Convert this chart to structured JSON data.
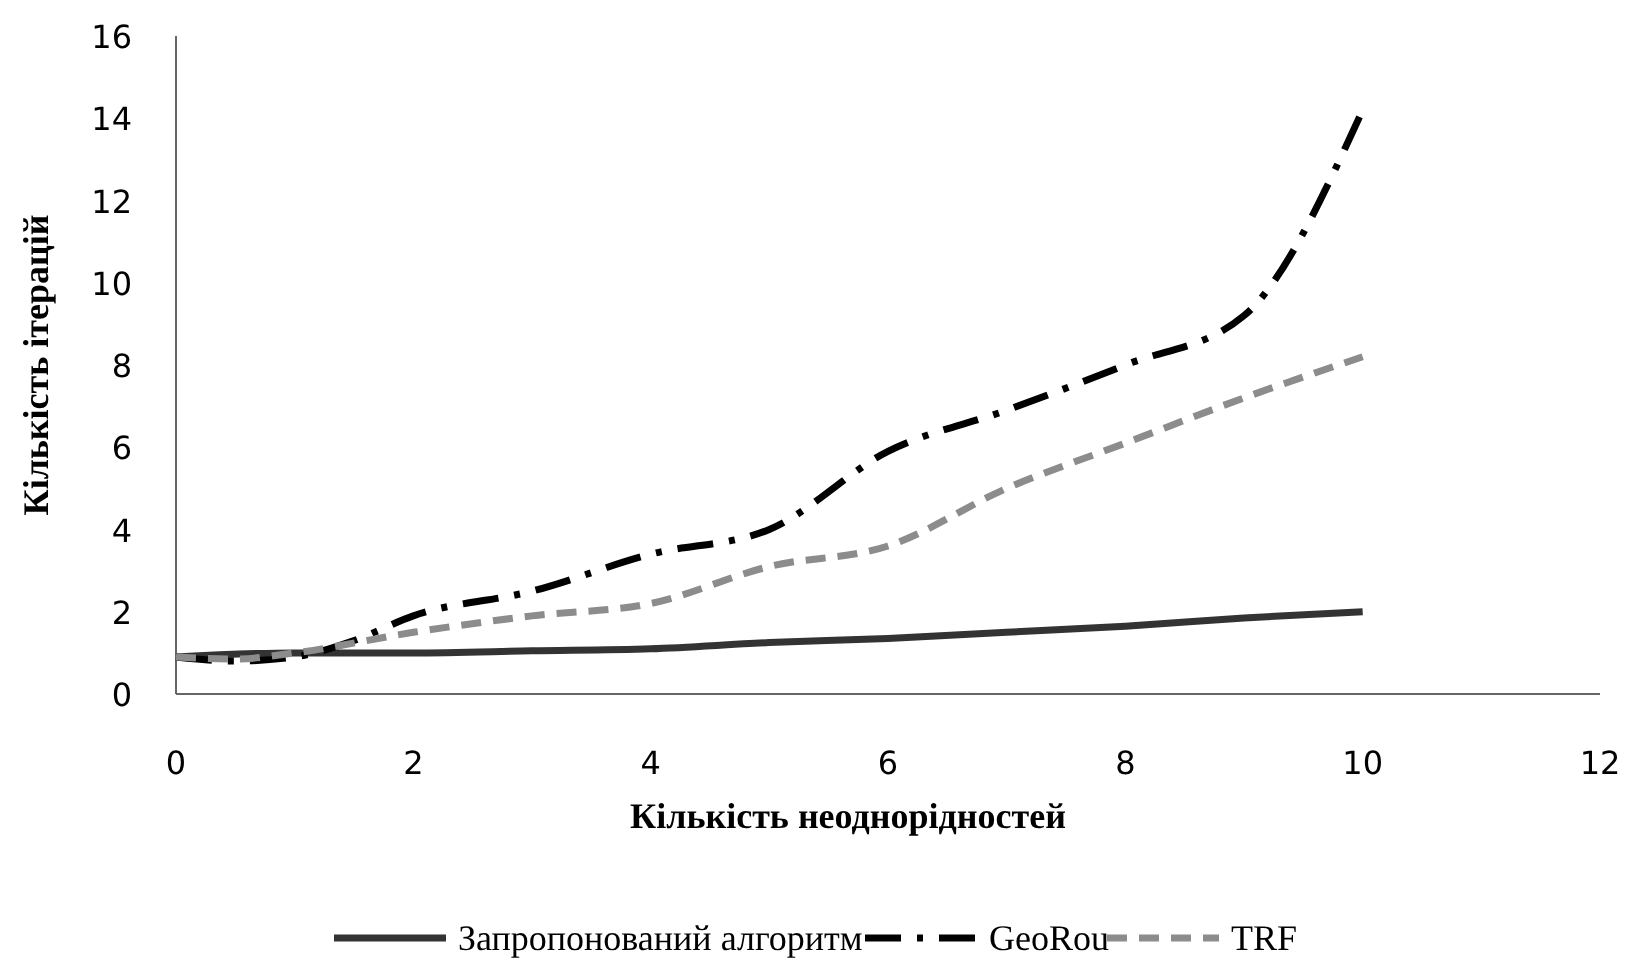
{
  "chart_data": {
    "type": "line",
    "xlabel": "Кількість неоднорідностей",
    "ylabel": "Кількість ітерацій",
    "xlim": [
      0,
      12
    ],
    "xticks": [
      0,
      2,
      4,
      6,
      8,
      10,
      12
    ],
    "ylim": [
      0,
      16
    ],
    "yticks": [
      0,
      2,
      4,
      6,
      8,
      10,
      12,
      14,
      16
    ],
    "grid": false,
    "legend": "bottom",
    "marker": "none",
    "series": [
      {
        "name": "Запропонований алгоритм",
        "color": "#333333",
        "line_style": "solid",
        "x": [
          0,
          1,
          2,
          3,
          4,
          5,
          6,
          7,
          8,
          9,
          10
        ],
        "values": [
          0.9,
          1,
          1,
          1.05,
          1.1,
          1.25,
          1.35,
          1.5,
          1.65,
          1.85,
          2
        ]
      },
      {
        "name": "GeoRou",
        "color": "#000000",
        "line_style": "dashdot",
        "x": [
          0,
          0.5,
          1,
          1.5,
          2,
          3,
          4,
          5,
          6,
          7,
          8,
          9,
          10
        ],
        "values": [
          0.9,
          0.8,
          0.9,
          1.3,
          1.9,
          2.5,
          3.4,
          4,
          5.9,
          6.9,
          8,
          9.2,
          14.2
        ]
      },
      {
        "name": "TRF",
        "color": "#8c8c8c",
        "line_style": "dashed",
        "x": [
          0,
          0.5,
          1,
          2,
          3,
          4,
          5,
          6,
          7,
          8,
          9,
          10
        ],
        "values": [
          0.9,
          0.85,
          1,
          1.5,
          1.9,
          2.2,
          3.1,
          3.6,
          5,
          6.1,
          7.2,
          8.2
        ]
      }
    ]
  }
}
